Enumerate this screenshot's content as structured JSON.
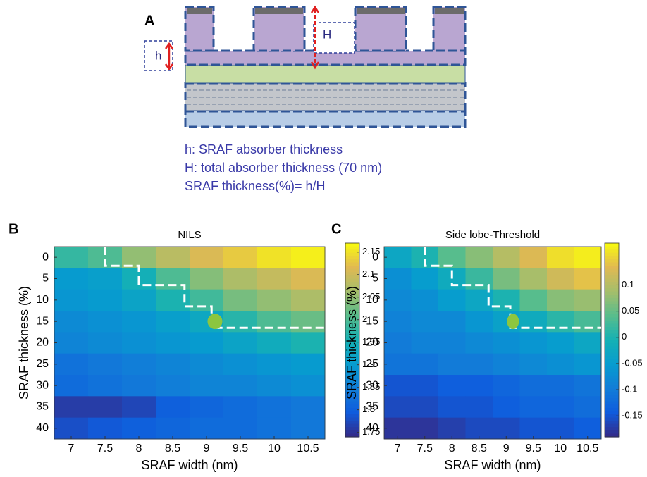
{
  "diagram": {
    "panel": "A",
    "small_label": "h",
    "big_label": "H",
    "legend": [
      "h: SRAF absorber thickness",
      "H: total absorber thickness (70 nm)",
      "SRAF thickness(%)= h/H"
    ]
  },
  "chart_data": [
    {
      "type": "heatmap",
      "panel": "B",
      "title": "NILS",
      "xlabel": "SRAF width (nm)",
      "ylabel": "SRAF thickness (%)",
      "x": [
        7,
        7.5,
        8,
        8.5,
        9,
        9.5,
        10,
        10.5
      ],
      "y": [
        0,
        5,
        10,
        15,
        20,
        25,
        30,
        35,
        40
      ],
      "values": [
        [
          1.98,
          2.0,
          2.05,
          2.08,
          2.11,
          2.13,
          2.15,
          2.16
        ],
        [
          1.9,
          1.91,
          1.95,
          2.0,
          2.04,
          2.07,
          2.09,
          2.11
        ],
        [
          1.89,
          1.9,
          1.92,
          1.96,
          1.99,
          2.03,
          2.05,
          2.07
        ],
        [
          1.87,
          1.88,
          1.89,
          1.91,
          1.93,
          1.97,
          2.0,
          2.02
        ],
        [
          1.86,
          1.87,
          1.88,
          1.89,
          1.9,
          1.92,
          1.94,
          1.96
        ],
        [
          1.83,
          1.84,
          1.85,
          1.86,
          1.87,
          1.88,
          1.89,
          1.9
        ],
        [
          1.82,
          1.83,
          1.84,
          1.85,
          1.86,
          1.86,
          1.87,
          1.88
        ],
        [
          1.76,
          1.76,
          1.77,
          1.8,
          1.81,
          1.82,
          1.83,
          1.84
        ],
        [
          1.78,
          1.79,
          1.8,
          1.81,
          1.82,
          1.82,
          1.83,
          1.84
        ]
      ],
      "clim": [
        1.74,
        2.17
      ],
      "cticks": [
        1.75,
        1.8,
        1.85,
        1.9,
        1.95,
        2,
        2.05,
        2.1,
        2.15
      ]
    },
    {
      "type": "heatmap",
      "panel": "C",
      "title": "Side lobe-Threshold",
      "xlabel": "SRAF width (nm)",
      "ylabel": "SRAF thickness (%)",
      "x": [
        7,
        7.5,
        8,
        8.5,
        9,
        9.5,
        10,
        10.5
      ],
      "y": [
        0,
        5,
        10,
        15,
        20,
        25,
        30,
        35,
        40
      ],
      "values": [
        [
          -0.03,
          0.0,
          0.04,
          0.07,
          0.1,
          0.13,
          0.16,
          0.17
        ],
        [
          -0.07,
          -0.05,
          -0.02,
          0.02,
          0.06,
          0.09,
          0.12,
          0.14
        ],
        [
          -0.08,
          -0.07,
          -0.05,
          -0.03,
          0.0,
          0.04,
          0.07,
          0.08
        ],
        [
          -0.09,
          -0.08,
          -0.08,
          -0.06,
          -0.04,
          -0.02,
          0.01,
          0.03
        ],
        [
          -0.1,
          -0.09,
          -0.09,
          -0.08,
          -0.07,
          -0.06,
          -0.05,
          -0.03
        ],
        [
          -0.11,
          -0.11,
          -0.1,
          -0.1,
          -0.09,
          -0.08,
          -0.07,
          -0.06
        ],
        [
          -0.15,
          -0.15,
          -0.14,
          -0.14,
          -0.13,
          -0.12,
          -0.12,
          -0.11
        ],
        [
          -0.16,
          -0.16,
          -0.15,
          -0.15,
          -0.14,
          -0.13,
          -0.13,
          -0.12
        ],
        [
          -0.18,
          -0.18,
          -0.17,
          -0.16,
          -0.16,
          -0.15,
          -0.15,
          -0.14
        ]
      ],
      "clim": [
        -0.19,
        0.18
      ],
      "cticks": [
        -0.15,
        -0.1,
        -0.05,
        0,
        0.05,
        0.1
      ]
    }
  ]
}
